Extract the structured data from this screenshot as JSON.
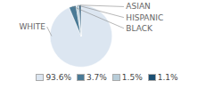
{
  "chart_data": {
    "type": "pie",
    "categories": [
      "WHITE",
      "BLACK",
      "HISPANIC",
      "ASIAN"
    ],
    "values": [
      93.6,
      3.7,
      1.5,
      1.1
    ],
    "value_labels": [
      "93.6%",
      "3.7%",
      "1.5%",
      "1.1%"
    ],
    "colors": [
      "#dce6f1",
      "#4a7a96",
      "#b8cdd9",
      "#1b4f72"
    ],
    "legend": "bottom"
  }
}
